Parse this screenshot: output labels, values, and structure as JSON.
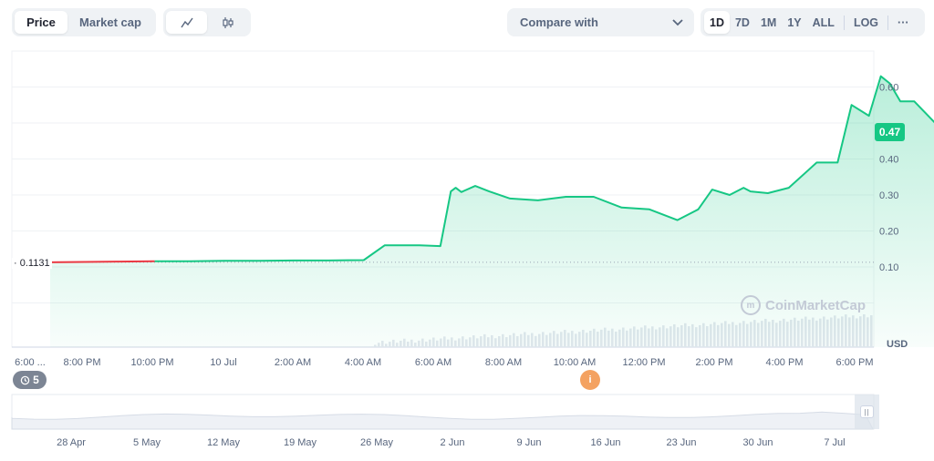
{
  "toolbar": {
    "metric_tabs": [
      {
        "label": "Price",
        "active": true
      },
      {
        "label": "Market cap",
        "active": false
      }
    ],
    "chart_types": [
      {
        "icon": "line-chart-icon",
        "active": true
      },
      {
        "icon": "candlestick-icon",
        "active": false
      }
    ],
    "compare_label": "Compare with",
    "ranges": [
      {
        "label": "1D",
        "active": true
      },
      {
        "label": "7D",
        "active": false
      },
      {
        "label": "1M",
        "active": false
      },
      {
        "label": "1Y",
        "active": false
      },
      {
        "label": "ALL",
        "active": false
      }
    ],
    "log_label": "LOG",
    "more_label": "···"
  },
  "chart_data": {
    "type": "line",
    "x_labels": [
      "6:00 ...",
      "8:00 PM",
      "10:00 PM",
      "10 Jul",
      "2:00 AM",
      "4:00 AM",
      "6:00 AM",
      "8:00 AM",
      "10:00 AM",
      "12:00 PM",
      "2:00 PM",
      "4:00 PM",
      "6:00 PM"
    ],
    "y_ticks": [
      "0.10",
      "0.20",
      "0.30",
      "0.40",
      "0.60"
    ],
    "ylim": [
      0.0,
      0.7
    ],
    "currency": "USD",
    "current_price": "0.47",
    "start_price": "0.1131",
    "series": [
      {
        "x": [
          0,
          0.5,
          1,
          1.5,
          2,
          2.5,
          3,
          3.5,
          4,
          4.5,
          4.8,
          5.0,
          5.3,
          5.6,
          5.75,
          5.82,
          5.9,
          6.1,
          6.3,
          6.6,
          7.0,
          7.4,
          7.8,
          8.2,
          8.6,
          9.0,
          9.3,
          9.5,
          9.75,
          9.95,
          10.05,
          10.3,
          10.6,
          11.0,
          11.3,
          11.5,
          11.75,
          11.92,
          12.05,
          12.2,
          12.4,
          12.6,
          12.8,
          13.0
        ],
        "y": [
          0.113,
          0.114,
          0.115,
          0.116,
          0.116,
          0.117,
          0.117,
          0.118,
          0.118,
          0.119,
          0.16,
          0.16,
          0.16,
          0.158,
          0.31,
          0.32,
          0.308,
          0.325,
          0.31,
          0.29,
          0.285,
          0.295,
          0.295,
          0.265,
          0.26,
          0.23,
          0.26,
          0.315,
          0.3,
          0.32,
          0.31,
          0.305,
          0.32,
          0.39,
          0.39,
          0.55,
          0.52,
          0.63,
          0.61,
          0.56,
          0.56,
          0.52,
          0.48,
          0.475
        ]
      }
    ],
    "navigator_x_labels": [
      "28 Apr",
      "5 May",
      "12 May",
      "19 May",
      "26 May",
      "2 Jun",
      "9 Jun",
      "16 Jun",
      "23 Jun",
      "30 Jun",
      "7 Jul"
    ]
  },
  "watermark": "CoinMarketCap",
  "history_count": "5",
  "event_marker_label": "i",
  "colors": {
    "up": "#16c784",
    "down": "#ea3943",
    "grid": "#eff2f5",
    "axis_text": "#58667e"
  }
}
